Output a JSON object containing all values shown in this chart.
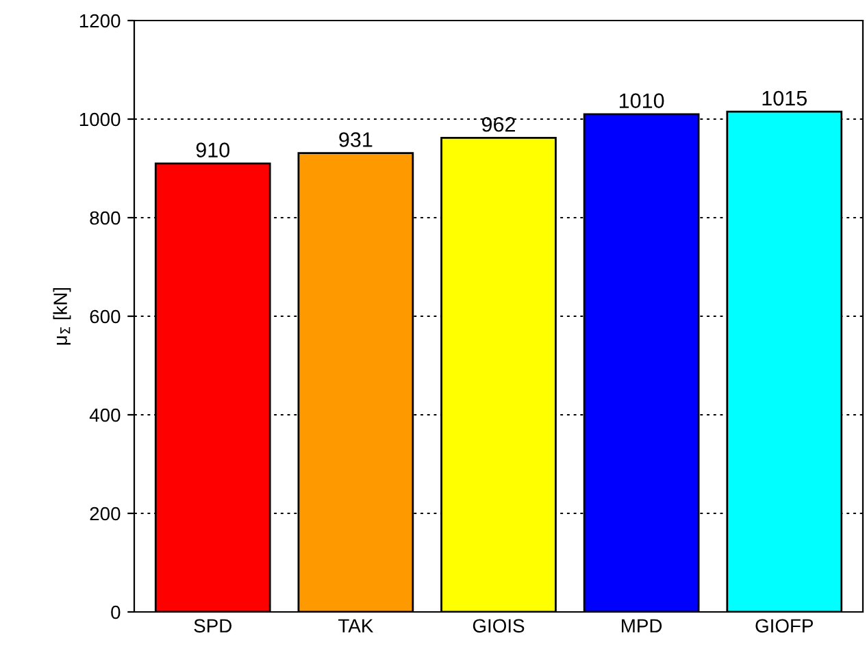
{
  "chart_data": {
    "type": "bar",
    "ylabel": "μ$_{Σ}$ [kN]",
    "categories": [
      "SPD",
      "TAK",
      "GIOIS",
      "MPD",
      "GIOFP"
    ],
    "values": [
      910,
      931,
      962,
      1010,
      1015
    ],
    "colors": [
      "#ff0000",
      "#ff9900",
      "#ffff00",
      "#0000ff",
      "#00ffff"
    ],
    "ylim": [
      0,
      1200
    ],
    "yticks": [
      0,
      200,
      400,
      600,
      800,
      1000,
      1200
    ],
    "grid": "y",
    "data_labels": true
  }
}
